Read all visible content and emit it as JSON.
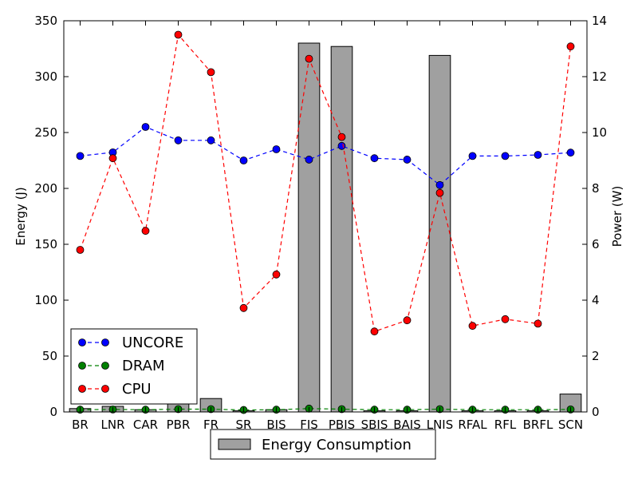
{
  "chart_data": {
    "type": "bar",
    "categories": [
      "BR",
      "LNR",
      "CAR",
      "PBR",
      "FR",
      "SR",
      "BIS",
      "FIS",
      "PBIS",
      "SBIS",
      "BAIS",
      "LNIS",
      "RFAL",
      "RFL",
      "BRFL",
      "SCN"
    ],
    "bar_series": {
      "name": "Energy Consumption",
      "axis": "left",
      "color": "#a0a0a0",
      "values": [
        3,
        5,
        2,
        8,
        12,
        1,
        2,
        330,
        327,
        1,
        1,
        319,
        1,
        1,
        1,
        16
      ]
    },
    "line_series": [
      {
        "name": "UNCORE",
        "axis": "right",
        "color": "#0000ff",
        "values": [
          9.16,
          9.29,
          10.2,
          9.72,
          9.72,
          9.0,
          9.4,
          9.03,
          9.52,
          9.08,
          9.03,
          8.12,
          9.16,
          9.16,
          9.2,
          9.28
        ]
      },
      {
        "name": "DRAM",
        "axis": "right",
        "color": "#008000",
        "values": [
          0.08,
          0.09,
          0.08,
          0.1,
          0.1,
          0.07,
          0.08,
          0.12,
          0.1,
          0.08,
          0.08,
          0.1,
          0.08,
          0.08,
          0.08,
          0.09
        ]
      },
      {
        "name": "CPU",
        "axis": "right",
        "color": "#ff0000",
        "values": [
          5.8,
          9.08,
          6.48,
          13.5,
          12.16,
          3.72,
          4.92,
          12.64,
          9.84,
          2.88,
          3.28,
          7.84,
          3.08,
          3.32,
          3.16,
          13.08
        ]
      }
    ],
    "left_axis": {
      "label": "Energy (J)",
      "ylim": [
        0,
        350
      ],
      "ticks": [
        "0",
        "50",
        "100",
        "150",
        "200",
        "250",
        "300",
        "350"
      ]
    },
    "right_axis": {
      "label": "Power (W)",
      "ylim": [
        0,
        14
      ],
      "ticks": [
        "0",
        "2",
        "4",
        "6",
        "8",
        "10",
        "12",
        "14"
      ]
    },
    "legend_lines_position": "lower-left",
    "legend_bars_position": "below-plot",
    "grid": false
  }
}
